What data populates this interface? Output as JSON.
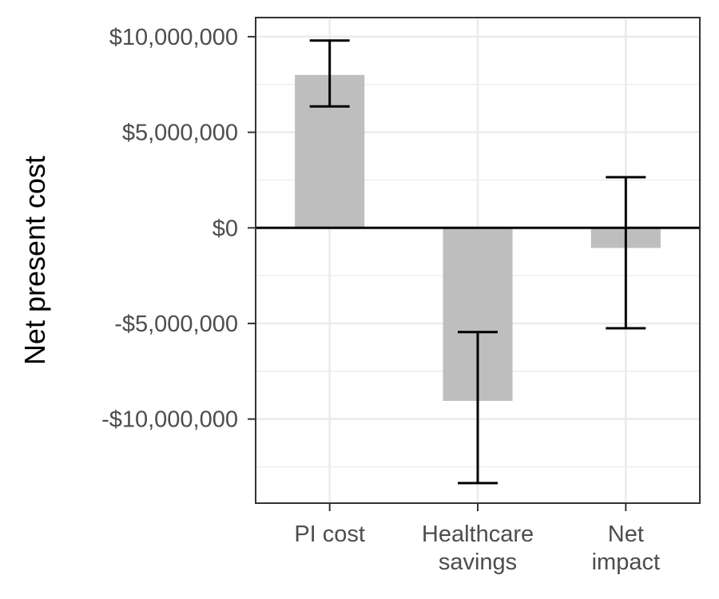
{
  "chart_data": {
    "type": "bar",
    "title": "",
    "xlabel": "",
    "ylabel": "Net present cost",
    "categories": [
      [
        "PI cost"
      ],
      [
        "Healthcare",
        "savings"
      ],
      [
        "Net",
        "impact"
      ]
    ],
    "values": [
      8000000,
      -9050000,
      -1050000
    ],
    "error_low": [
      6350000,
      -13350000,
      -5250000
    ],
    "error_high": [
      9800000,
      -5450000,
      2650000
    ],
    "ylim": [
      -14400000,
      11000000
    ],
    "yticks": [
      10000000,
      5000000,
      0,
      -5000000,
      -10000000
    ],
    "ytick_labels": [
      "$10,000,000",
      "$5,000,000",
      "$0",
      "-$5,000,000",
      "-$10,000,000"
    ],
    "grid": true,
    "zero_line": true,
    "colors": {
      "bar": "#bebebe",
      "grid": "#ebebeb",
      "panel_border": "#333333",
      "error_bar": "#000000"
    }
  }
}
